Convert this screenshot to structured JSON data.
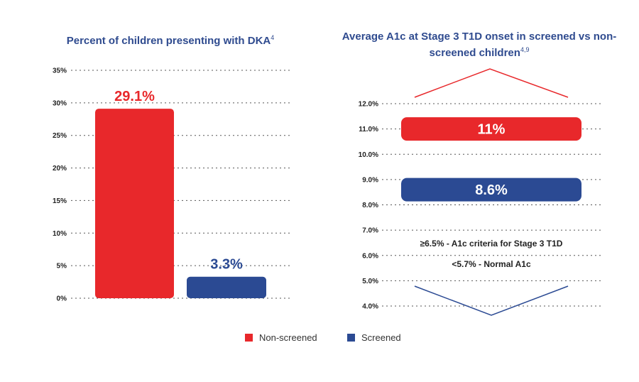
{
  "colors": {
    "non_screened": "#e8282b",
    "screened": "#2b4a93",
    "title": "#2f4b8f",
    "axis_text": "#222222",
    "grid": "#555555"
  },
  "legend": [
    {
      "label": "Non-screened",
      "color": "#e8282b"
    },
    {
      "label": "Screened",
      "color": "#2b4a93"
    }
  ],
  "chart_data": [
    {
      "type": "bar",
      "title": "Percent of children presenting with DKA",
      "title_superscript": "4",
      "categories": [
        "Non-screened",
        "Screened"
      ],
      "values": [
        29.1,
        3.3
      ],
      "data_labels": [
        "29.1%",
        "3.3%"
      ],
      "ylim": [
        0,
        35
      ],
      "yticks": [
        "0%",
        "5%",
        "10%",
        "15%",
        "20%",
        "25%",
        "30%",
        "35%"
      ],
      "grid": true
    },
    {
      "type": "bar",
      "title": "Average A1c at Stage 3 T1D onset in screened vs non-screened children",
      "title_superscript": "4,9",
      "categories": [
        "Non-screened",
        "Screened"
      ],
      "values": [
        11,
        8.6
      ],
      "data_labels": [
        "11%",
        "8.6%"
      ],
      "ylim": [
        4,
        12
      ],
      "yticks": [
        "4.0%",
        "5.0%",
        "6.0%",
        "7.0%",
        "8.0%",
        "9.0%",
        "10.0%",
        "11.0%",
        "12.0%"
      ],
      "grid": true,
      "annotations": [
        "≥6.5% - A1c criteria for Stage 3 T1D",
        "<5.7% - Normal A1c"
      ]
    }
  ]
}
